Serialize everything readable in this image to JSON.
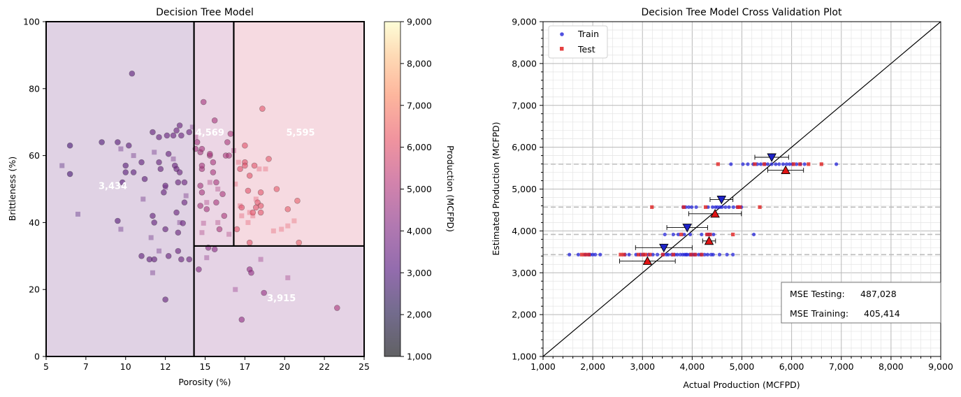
{
  "chart_data": [
    {
      "type": "scatter",
      "title": "Decision Tree Model",
      "xlabel": "Porosity (%)",
      "ylabel": "Brittleness (%)",
      "xlim": [
        5,
        25
      ],
      "ylim": [
        0,
        100
      ],
      "x_ticks": [
        5,
        7.5,
        10,
        12.5,
        15,
        17.5,
        20,
        22.5,
        25
      ],
      "x_tick_labels": [
        "5",
        "7",
        "10",
        "12",
        "15",
        "17",
        "20",
        "22",
        "25"
      ],
      "y_ticks": [
        0,
        20,
        40,
        60,
        80,
        100
      ],
      "y_tick_labels": [
        "0",
        "20",
        "40",
        "60",
        "80",
        "100"
      ],
      "colorbar": {
        "label": "Production (MCFPD)",
        "min": 1000,
        "max": 9000,
        "ticks": [
          1000,
          2000,
          3000,
          4000,
          5000,
          6000,
          7000,
          8000,
          9000
        ],
        "tick_labels": [
          "1,000",
          "2,000",
          "3,000",
          "4,000",
          "5,000",
          "6,000",
          "7,000",
          "8,000",
          "9,000"
        ],
        "colormap": [
          "#000004",
          "#3b0f70",
          "#8c2981",
          "#de4968",
          "#fe9f6d",
          "#fcfdbf"
        ]
      },
      "regions": [
        {
          "label": "3,434",
          "value": 3434,
          "x": [
            5,
            14.3
          ],
          "y": [
            0,
            100
          ],
          "label_at": [
            9.2,
            51
          ]
        },
        {
          "label": "4,569",
          "value": 4569,
          "x": [
            14.3,
            16.8
          ],
          "y": [
            33,
            100
          ],
          "label_at": [
            15.3,
            67
          ]
        },
        {
          "label": "5,595",
          "value": 5595,
          "x": [
            16.8,
            25
          ],
          "y": [
            33,
            100
          ],
          "label_at": [
            21,
            67
          ]
        },
        {
          "label": "3,915",
          "value": 3915,
          "x": [
            14.3,
            25
          ],
          "y": [
            0,
            33
          ],
          "label_at": [
            19.8,
            17.5
          ]
        }
      ],
      "train_points": [
        [
          6.5,
          63
        ],
        [
          6.5,
          54.5
        ],
        [
          8.5,
          64
        ],
        [
          9.5,
          64
        ],
        [
          9.5,
          40.5
        ],
        [
          9.8,
          52
        ],
        [
          10,
          55
        ],
        [
          10,
          57
        ],
        [
          10.2,
          63
        ],
        [
          10.5,
          55
        ],
        [
          10.4,
          84.5
        ],
        [
          11,
          58
        ],
        [
          11,
          30
        ],
        [
          11.2,
          53
        ],
        [
          11.5,
          29
        ],
        [
          11.7,
          67
        ],
        [
          11.7,
          42
        ],
        [
          11.8,
          29
        ],
        [
          11.8,
          40
        ],
        [
          12.1,
          65.5
        ],
        [
          12.1,
          58
        ],
        [
          12.2,
          56
        ],
        [
          12.4,
          49
        ],
        [
          12.5,
          51
        ],
        [
          12.6,
          66
        ],
        [
          12.7,
          60.5
        ],
        [
          12.7,
          30
        ],
        [
          12.5,
          17
        ],
        [
          12.5,
          38
        ],
        [
          13,
          66
        ],
        [
          13.1,
          57
        ],
        [
          13.2,
          67.5
        ],
        [
          13.2,
          56
        ],
        [
          13.2,
          43
        ],
        [
          13.3,
          52
        ],
        [
          13.3,
          37
        ],
        [
          13.3,
          31.5
        ],
        [
          13.4,
          55
        ],
        [
          13.4,
          69
        ],
        [
          13.5,
          29
        ],
        [
          13.5,
          66
        ],
        [
          13.6,
          39.8
        ],
        [
          13.7,
          46
        ],
        [
          13.7,
          52
        ],
        [
          14,
          67
        ],
        [
          14,
          29
        ],
        [
          14.4,
          62
        ],
        [
          14.5,
          64
        ],
        [
          14.6,
          26
        ],
        [
          14.7,
          45
        ],
        [
          14.7,
          51
        ],
        [
          14.7,
          61
        ],
        [
          14.8,
          49
        ],
        [
          14.8,
          56
        ],
        [
          14.8,
          57
        ],
        [
          14.9,
          76
        ],
        [
          15.1,
          44
        ],
        [
          15.2,
          32.5
        ],
        [
          15.3,
          60
        ],
        [
          15.5,
          55
        ],
        [
          15.5,
          58
        ],
        [
          15.6,
          32
        ],
        [
          15.6,
          70.5
        ],
        [
          15.7,
          52
        ],
        [
          15.7,
          46
        ],
        [
          15.9,
          38
        ],
        [
          16.1,
          48.5
        ],
        [
          16.2,
          42
        ],
        [
          16.3,
          60
        ],
        [
          16.4,
          64
        ],
        [
          16.6,
          66.5
        ],
        [
          16.5,
          60
        ],
        [
          17,
          38
        ],
        [
          17.2,
          56
        ],
        [
          17.3,
          44.5
        ],
        [
          17.5,
          58
        ],
        [
          17.5,
          63
        ],
        [
          17.7,
          49.5
        ],
        [
          17.8,
          34
        ],
        [
          17.8,
          54
        ],
        [
          17.8,
          26
        ],
        [
          17.9,
          25
        ],
        [
          18,
          43
        ],
        [
          18.1,
          57
        ],
        [
          18.2,
          44.5
        ],
        [
          18.3,
          46
        ],
        [
          18.5,
          49
        ],
        [
          18.5,
          45
        ],
        [
          18.5,
          43
        ],
        [
          18.6,
          74
        ],
        [
          18.7,
          19
        ],
        [
          19,
          59
        ],
        [
          19.5,
          50
        ],
        [
          20.2,
          44
        ],
        [
          20.8,
          46.5
        ],
        [
          20.9,
          34
        ],
        [
          23.3,
          14.5
        ],
        [
          17.3,
          11
        ],
        [
          15.3,
          60.5
        ],
        [
          14.8,
          62
        ],
        [
          17.5,
          57
        ]
      ],
      "test_points": [
        [
          6,
          57
        ],
        [
          7,
          42.5
        ],
        [
          9.7,
          62
        ],
        [
          9.7,
          38
        ],
        [
          10.5,
          60
        ],
        [
          11.1,
          47
        ],
        [
          11.6,
          35.5
        ],
        [
          11.7,
          25
        ],
        [
          11.8,
          61
        ],
        [
          12.1,
          31.5
        ],
        [
          12.5,
          50.5
        ],
        [
          13,
          59
        ],
        [
          13.4,
          40
        ],
        [
          13.8,
          48
        ],
        [
          14.2,
          68.5
        ],
        [
          14.4,
          65.5
        ],
        [
          14.8,
          37
        ],
        [
          14.9,
          39.8
        ],
        [
          15.1,
          46
        ],
        [
          15.3,
          52
        ],
        [
          15.8,
          40
        ],
        [
          15.8,
          50
        ],
        [
          16.5,
          36.5
        ],
        [
          16.9,
          51.5
        ],
        [
          17.1,
          58
        ],
        [
          17.2,
          45
        ],
        [
          17.3,
          42
        ],
        [
          17.7,
          40
        ],
        [
          17.8,
          43
        ],
        [
          18.0,
          42
        ],
        [
          18.2,
          47
        ],
        [
          18.4,
          56
        ],
        [
          18.8,
          56
        ],
        [
          19.3,
          37.5
        ],
        [
          19.8,
          38
        ],
        [
          20.2,
          39
        ],
        [
          20.6,
          40.5
        ],
        [
          18.5,
          29
        ],
        [
          16.9,
          20
        ],
        [
          20.2,
          23.5
        ],
        [
          15.1,
          29.5
        ],
        [
          16.8,
          61.5
        ]
      ]
    },
    {
      "type": "scatter",
      "title": "Decision Tree Model Cross Validation Plot",
      "xlabel": "Actual Production (MCFPD)",
      "ylabel": "Estimated Production (MCFPD)",
      "xlim": [
        1000,
        9000
      ],
      "ylim": [
        1000,
        9000
      ],
      "ticks": [
        1000,
        2000,
        3000,
        4000,
        5000,
        6000,
        7000,
        8000,
        9000
      ],
      "tick_labels": [
        "1,000",
        "2,000",
        "3,000",
        "4,000",
        "5,000",
        "6,000",
        "7,000",
        "8,000",
        "9,000"
      ],
      "grid": true,
      "legend": {
        "position": "top-left",
        "entries": [
          "Train",
          "Test"
        ]
      },
      "series_colors": {
        "train": "#2424d8",
        "test": "#e02020"
      },
      "levels": [
        3434,
        3915,
        4569,
        5595
      ],
      "train_x": {
        "3434": [
          1530,
          1710,
          1850,
          1920,
          1950,
          2000,
          2050,
          2150,
          2650,
          2730,
          2870,
          2960,
          3020,
          3120,
          3210,
          3300,
          3410,
          3480,
          3520,
          3590,
          3650,
          3700,
          3760,
          3810,
          3850,
          3880,
          3900,
          3950,
          3990,
          4030,
          4060,
          4130,
          4180,
          4250,
          4310,
          4380,
          4420,
          4550,
          4700,
          4820
        ],
        "3915": [
          3450,
          3620,
          3720,
          3840,
          3960,
          4190,
          4310,
          4350,
          4430,
          5240
        ],
        "4569": [
          3820,
          3870,
          3930,
          3990,
          4080,
          4320,
          4410,
          4470,
          4510,
          4560,
          4600,
          4670,
          4740,
          4830,
          4910,
          4990
        ],
        "5595": [
          5120,
          5230,
          5310,
          5380,
          5460,
          5520,
          5600,
          5680,
          5750,
          5830,
          5900,
          5960,
          6020,
          6100,
          6180,
          6260,
          6900,
          4780,
          5020
        ]
      },
      "test_x": {
        "3434": [
          1780,
          1850,
          1920,
          2560,
          2630,
          2920,
          3010,
          3060,
          3150,
          3410,
          3620,
          3980,
          4060,
          4190
        ],
        "3915": [
          3780,
          4300,
          4360,
          4820
        ],
        "4569": [
          3190,
          3830,
          4270,
          4920,
          4960,
          5360
        ],
        "5595": [
          4520,
          5260,
          5450,
          6040,
          6170,
          6340,
          6600
        ]
      },
      "train_means": [
        {
          "x": 3430,
          "y": 3600,
          "xerr": 570
        },
        {
          "x": 3900,
          "y": 4080,
          "xerr": 410
        },
        {
          "x": 4590,
          "y": 4750,
          "xerr": 230
        },
        {
          "x": 5600,
          "y": 5760,
          "xerr": 340
        }
      ],
      "test_means": [
        {
          "x": 3100,
          "y": 3280,
          "xerr": 560
        },
        {
          "x": 4340,
          "y": 3760,
          "xerr": 130
        },
        {
          "x": 4460,
          "y": 4410,
          "xerr": 530
        },
        {
          "x": 5880,
          "y": 5450,
          "xerr": 360
        }
      ],
      "annotations": [
        {
          "label": "MSE Testing:",
          "value": "487,028"
        },
        {
          "label": "MSE Training:",
          "value": "405,414"
        }
      ]
    }
  ]
}
